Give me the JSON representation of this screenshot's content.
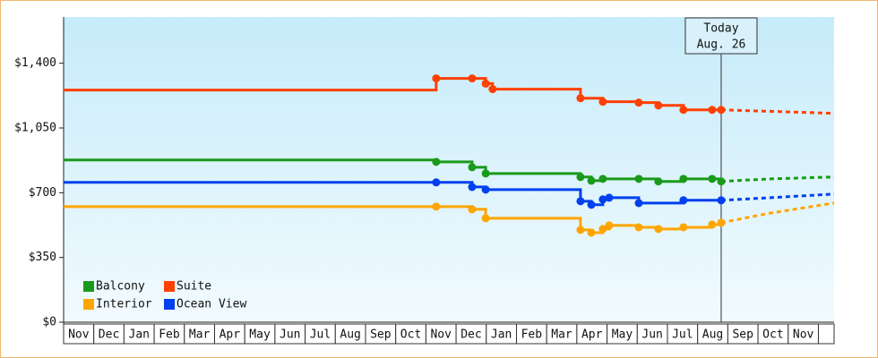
{
  "chart_data": {
    "type": "step-line",
    "categories": [
      "Nov",
      "Dec",
      "Jan",
      "Feb",
      "Mar",
      "Apr",
      "May",
      "Jun",
      "Jul",
      "Aug",
      "Sep",
      "Oct",
      "Nov",
      "Dec",
      "Jan",
      "Feb",
      "Mar",
      "Apr",
      "May",
      "Jun",
      "Jul",
      "Aug",
      "Sep",
      "Oct",
      "Nov",
      null
    ],
    "xlim": [
      0,
      25.52
    ],
    "ylim": [
      0,
      1650
    ],
    "yticks": [
      {
        "value": 0,
        "label": "$0"
      },
      {
        "value": 350,
        "label": "$350"
      },
      {
        "value": 700,
        "label": "$700"
      },
      {
        "value": 1050,
        "label": "$1,050"
      },
      {
        "value": 1400,
        "label": "$1,400"
      }
    ],
    "legend": "bottom-left",
    "series": [
      {
        "name": "Balcony",
        "color": "#1a9a1a",
        "x": [
          0,
          12.34,
          13.53,
          13.98,
          17.12,
          17.48,
          17.86,
          19.05,
          19.7,
          20.53,
          21.48,
          21.78
        ],
        "values": [
          877,
          867,
          838,
          804,
          785,
          765,
          775,
          775,
          761,
          775,
          775,
          761
        ],
        "forecast": {
          "x": [
            21.78,
            23.41,
            25.52
          ],
          "values": [
            761,
            775,
            785
          ]
        }
      },
      {
        "name": "Suite",
        "color": "#ff4000",
        "x": [
          0,
          12.34,
          13.53,
          13.98,
          14.21,
          17.12,
          17.86,
          19.05,
          19.7,
          20.53,
          21.48,
          21.78
        ],
        "values": [
          1255,
          1318,
          1318,
          1290,
          1260,
          1211,
          1192,
          1187,
          1172,
          1148,
          1148,
          1148
        ],
        "forecast": {
          "x": [
            21.78,
            23.41,
            25.52
          ],
          "values": [
            1148,
            1140,
            1129
          ]
        }
      },
      {
        "name": "Interior",
        "color": "#ffa500",
        "x": [
          0,
          12.34,
          13.53,
          13.98,
          17.12,
          17.48,
          17.86,
          18.07,
          19.05,
          19.7,
          20.53,
          21.48,
          21.78
        ],
        "values": [
          625,
          625,
          610,
          562,
          499,
          484,
          504,
          523,
          513,
          504,
          513,
          528,
          538
        ],
        "forecast": {
          "x": [
            21.78,
            23.41,
            25.52
          ],
          "values": [
            538,
            590,
            644
          ]
        }
      },
      {
        "name": "Ocean View",
        "color": "#0040ee",
        "x": [
          0,
          12.34,
          13.53,
          13.98,
          17.12,
          17.48,
          17.86,
          18.07,
          19.05,
          20.53,
          21.78
        ],
        "values": [
          756,
          756,
          731,
          717,
          654,
          635,
          664,
          673,
          644,
          659,
          659
        ],
        "forecast": {
          "x": [
            21.78,
            23.41,
            25.52
          ],
          "values": [
            659,
            673,
            693
          ]
        }
      }
    ],
    "today": {
      "x": 21.78,
      "label": [
        "Today",
        "Aug. 26"
      ]
    }
  }
}
